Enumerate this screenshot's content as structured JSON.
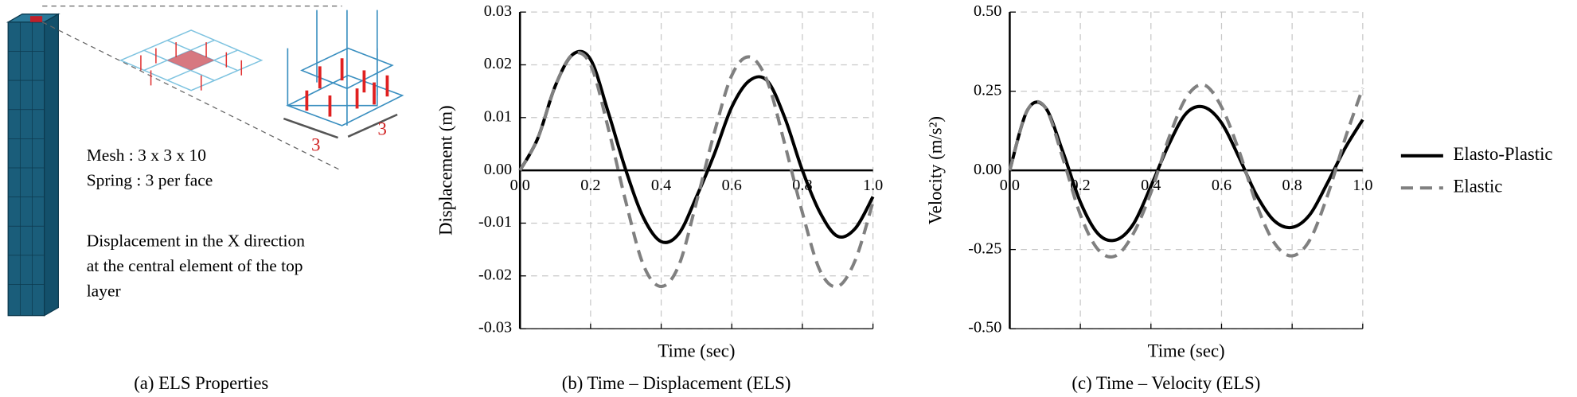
{
  "panel_a": {
    "lines": [
      "Mesh : 3 x 3 x 10",
      "Spring : 3 per face",
      "Displacement in the X direction",
      "at the central element of the top",
      "layer"
    ],
    "dimension_labels": [
      "3",
      "3"
    ],
    "caption": "(a) ELS Properties"
  },
  "chart_data": [
    {
      "type": "line",
      "caption": "(b) Time – Displacement (ELS)",
      "xlabel": "Time (sec)",
      "ylabel": "Displacement (m)",
      "x": [
        0,
        0.05,
        0.1,
        0.15,
        0.2,
        0.25,
        0.3,
        0.35,
        0.4,
        0.45,
        0.5,
        0.55,
        0.6,
        0.65,
        0.7,
        0.75,
        0.8,
        0.85,
        0.9,
        0.95,
        1.0
      ],
      "series": [
        {
          "name": "Elasto-Plastic",
          "color": "#000000",
          "style": "solid",
          "values": [
            0,
            0.006,
            0.016,
            0.022,
            0.021,
            0.011,
            0.0,
            -0.009,
            -0.0135,
            -0.012,
            -0.005,
            0.003,
            0.012,
            0.017,
            0.017,
            0.01,
            0.0,
            -0.008,
            -0.0125,
            -0.011,
            -0.005
          ]
        },
        {
          "name": "Elastic",
          "color": "#808080",
          "style": "dashed",
          "values": [
            0,
            0.006,
            0.016,
            0.022,
            0.02,
            0.008,
            -0.006,
            -0.018,
            -0.022,
            -0.018,
            -0.006,
            0.007,
            0.018,
            0.0215,
            0.017,
            0.005,
            -0.008,
            -0.019,
            -0.022,
            -0.017,
            -0.006
          ]
        }
      ],
      "xlim": [
        0,
        1.0
      ],
      "xticks": [
        {
          "value": 0,
          "label": "0.0"
        },
        0.2,
        0.4,
        0.6,
        0.8,
        {
          "value": 1.0,
          "label": "1.0"
        }
      ],
      "ylim": [
        -0.03,
        0.03
      ],
      "yticks": [
        0.03,
        0.02,
        0.01,
        {
          "value": 0,
          "label": "0.00"
        },
        -0.01,
        -0.02,
        -0.03
      ],
      "grid": true
    },
    {
      "type": "line",
      "caption": "(c) Time – Velocity (ELS)",
      "xlabel": "Time (sec)",
      "ylabel": "Velocity (m/s²)",
      "x": [
        0,
        0.05,
        0.1,
        0.15,
        0.2,
        0.25,
        0.3,
        0.35,
        0.4,
        0.45,
        0.5,
        0.55,
        0.6,
        0.65,
        0.7,
        0.75,
        0.8,
        0.85,
        0.9,
        0.95,
        1.0
      ],
      "series": [
        {
          "name": "Elasto-Plastic",
          "color": "#000000",
          "style": "solid",
          "values": [
            0,
            0.19,
            0.2,
            0.06,
            -0.1,
            -0.2,
            -0.22,
            -0.17,
            -0.05,
            0.08,
            0.18,
            0.2,
            0.15,
            0.04,
            -0.08,
            -0.16,
            -0.18,
            -0.14,
            -0.04,
            0.07,
            0.16
          ]
        },
        {
          "name": "Elastic",
          "color": "#808080",
          "style": "dashed",
          "values": [
            0,
            0.19,
            0.2,
            0.04,
            -0.14,
            -0.25,
            -0.27,
            -0.2,
            -0.07,
            0.1,
            0.23,
            0.27,
            0.2,
            0.06,
            -0.11,
            -0.23,
            -0.27,
            -0.22,
            -0.08,
            0.1,
            0.26
          ]
        }
      ],
      "xlim": [
        0,
        1.0
      ],
      "xticks": [
        {
          "value": 0,
          "label": "0.0"
        },
        0.2,
        0.4,
        0.6,
        0.8,
        {
          "value": 1.0,
          "label": "1.0"
        }
      ],
      "ylim": [
        -0.5,
        0.5
      ],
      "yticks": [
        {
          "value": 0.5,
          "label": "0.50"
        },
        0.25,
        {
          "value": 0,
          "label": "0.00"
        },
        -0.25,
        {
          "value": -0.5,
          "label": "-0.50"
        }
      ],
      "grid": true,
      "legend": "right"
    }
  ]
}
